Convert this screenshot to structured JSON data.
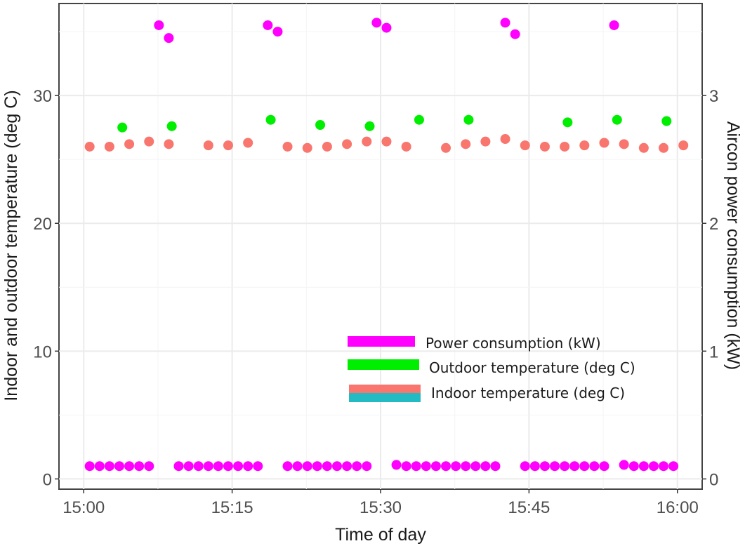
{
  "chart_data": {
    "type": "scatter",
    "title": "",
    "xlabel": "Time of day",
    "ylabel_left": "Indoor and outdoor temperature (deg C)",
    "ylabel_right": "Aircon power consumption (kW)",
    "x_unit": "minutes after 15:00",
    "x_ticks": [
      {
        "value": 0,
        "label": "15:00"
      },
      {
        "value": 15,
        "label": "15:15"
      },
      {
        "value": 30,
        "label": "15:30"
      },
      {
        "value": 45,
        "label": "15:45"
      },
      {
        "value": 60,
        "label": "16:00"
      }
    ],
    "xlim": [
      -2.5,
      62.5
    ],
    "ylim_left": [
      -0.8,
      37.2
    ],
    "ylim_right": [
      -0.08,
      3.72
    ],
    "y_ticks_left": [
      0,
      10,
      20,
      30
    ],
    "y_ticks_right": [
      0,
      1,
      2,
      3
    ],
    "grid": true,
    "legend_position": "bottom-right",
    "series": [
      {
        "name": "Power consumption (kW)",
        "axis": "right",
        "color": "#ff00ff",
        "x": [
          0.6,
          1.6,
          2.6,
          3.6,
          4.6,
          5.6,
          6.6,
          7.6,
          8.6,
          9.6,
          10.6,
          11.6,
          12.6,
          13.6,
          14.6,
          15.6,
          16.6,
          17.6,
          18.6,
          19.6,
          20.6,
          21.6,
          22.6,
          23.6,
          24.6,
          25.6,
          26.6,
          27.6,
          28.6,
          29.6,
          30.6,
          31.6,
          32.6,
          33.6,
          34.6,
          35.6,
          36.6,
          37.6,
          38.6,
          39.6,
          40.6,
          41.6,
          42.6,
          43.6,
          44.6,
          45.6,
          46.6,
          47.6,
          48.6,
          49.6,
          50.6,
          51.6,
          52.6,
          53.6,
          54.6,
          55.6,
          56.6,
          57.6,
          58.6,
          59.6
        ],
        "y": [
          0.1,
          0.1,
          0.1,
          0.1,
          0.1,
          0.1,
          0.1,
          3.55,
          3.45,
          0.1,
          0.1,
          0.1,
          0.1,
          0.1,
          0.1,
          0.1,
          0.1,
          0.1,
          3.55,
          3.5,
          0.1,
          0.1,
          0.1,
          0.1,
          0.1,
          0.1,
          0.1,
          0.1,
          0.1,
          3.57,
          3.53,
          0.11,
          0.1,
          0.1,
          0.1,
          0.1,
          0.1,
          0.1,
          0.1,
          0.1,
          0.1,
          0.1,
          3.57,
          3.48,
          0.1,
          0.1,
          0.1,
          0.1,
          0.1,
          0.1,
          0.1,
          0.1,
          0.1,
          3.55,
          0.11,
          0.1,
          0.1,
          0.1,
          0.1,
          0.1
        ]
      },
      {
        "name": "Outdoor temperature (deg C)",
        "axis": "left",
        "color": "#00ee00",
        "x": [
          3.9,
          8.9,
          18.9,
          23.9,
          28.9,
          33.9,
          38.9,
          48.9,
          53.9,
          58.9
        ],
        "y": [
          27.5,
          27.6,
          28.1,
          27.7,
          27.6,
          28.1,
          28.1,
          27.9,
          28.1,
          28.0
        ]
      },
      {
        "name": "Indoor temperature (deg C)",
        "axis": "left",
        "color": "#f8766d",
        "x": [
          0.6,
          2.6,
          4.6,
          6.6,
          8.6,
          12.6,
          14.6,
          16.6,
          20.6,
          22.6,
          24.6,
          26.6,
          28.6,
          30.6,
          32.6,
          36.6,
          38.6,
          40.6,
          42.6,
          44.6,
          46.6,
          48.6,
          50.6,
          52.6,
          54.6,
          56.6,
          58.6,
          60.6
        ],
        "y": [
          26.0,
          26.0,
          26.2,
          26.4,
          26.2,
          26.1,
          26.1,
          26.3,
          26.0,
          25.9,
          26.0,
          26.2,
          26.4,
          26.4,
          26.0,
          25.9,
          26.2,
          26.4,
          26.6,
          26.1,
          26.0,
          26.0,
          26.1,
          26.3,
          26.2,
          25.9,
          25.9,
          26.1
        ]
      }
    ]
  }
}
